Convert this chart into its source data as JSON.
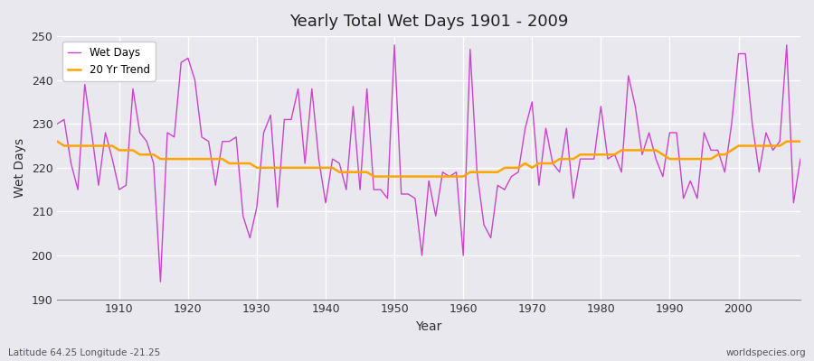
{
  "title": "Yearly Total Wet Days 1901 - 2009",
  "xlabel": "Year",
  "ylabel": "Wet Days",
  "lat_lon_label": "Latitude 64.25 Longitude -21.25",
  "watermark": "worldspecies.org",
  "ylim": [
    190,
    250
  ],
  "xlim": [
    1901,
    2009
  ],
  "yticks": [
    190,
    200,
    210,
    220,
    230,
    240,
    250
  ],
  "xticks": [
    1910,
    1920,
    1930,
    1940,
    1950,
    1960,
    1970,
    1980,
    1990,
    2000
  ],
  "wet_days_color": "#CC44CC",
  "trend_color": "#FFA500",
  "bg_color": "#E8E8EE",
  "grid_color": "#FFFFFF",
  "years": [
    1901,
    1902,
    1903,
    1904,
    1905,
    1906,
    1907,
    1908,
    1909,
    1910,
    1911,
    1912,
    1913,
    1914,
    1915,
    1916,
    1917,
    1918,
    1919,
    1920,
    1921,
    1922,
    1923,
    1924,
    1925,
    1926,
    1927,
    1928,
    1929,
    1930,
    1931,
    1932,
    1933,
    1934,
    1935,
    1936,
    1937,
    1938,
    1939,
    1940,
    1941,
    1942,
    1943,
    1944,
    1945,
    1946,
    1947,
    1948,
    1949,
    1950,
    1951,
    1952,
    1953,
    1954,
    1955,
    1956,
    1957,
    1958,
    1959,
    1960,
    1961,
    1962,
    1963,
    1964,
    1965,
    1966,
    1967,
    1968,
    1969,
    1970,
    1971,
    1972,
    1973,
    1974,
    1975,
    1976,
    1977,
    1978,
    1979,
    1980,
    1981,
    1982,
    1983,
    1984,
    1985,
    1986,
    1987,
    1988,
    1989,
    1990,
    1991,
    1992,
    1993,
    1994,
    1995,
    1996,
    1997,
    1998,
    1999,
    2000,
    2001,
    2002,
    2003,
    2004,
    2005,
    2006,
    2007,
    2008,
    2009
  ],
  "wet_days": [
    230,
    231,
    221,
    215,
    239,
    228,
    216,
    228,
    222,
    215,
    216,
    238,
    228,
    226,
    221,
    194,
    228,
    227,
    244,
    245,
    240,
    227,
    226,
    216,
    226,
    226,
    227,
    209,
    204,
    211,
    228,
    232,
    211,
    231,
    231,
    238,
    221,
    238,
    222,
    212,
    222,
    221,
    215,
    234,
    215,
    238,
    215,
    215,
    213,
    248,
    214,
    214,
    213,
    200,
    217,
    209,
    219,
    218,
    219,
    200,
    247,
    219,
    207,
    204,
    216,
    215,
    218,
    219,
    229,
    235,
    216,
    229,
    221,
    219,
    229,
    213,
    222,
    222,
    222,
    234,
    222,
    223,
    219,
    241,
    234,
    223,
    228,
    222,
    218,
    228,
    228,
    213,
    217,
    213,
    228,
    224,
    224,
    219,
    230,
    246,
    246,
    230,
    219,
    228,
    224,
    226,
    248,
    212,
    222
  ],
  "trend": [
    226,
    225,
    225,
    225,
    225,
    225,
    225,
    225,
    225,
    224,
    224,
    224,
    223,
    223,
    223,
    222,
    222,
    222,
    222,
    222,
    222,
    222,
    222,
    222,
    222,
    221,
    221,
    221,
    221,
    220,
    220,
    220,
    220,
    220,
    220,
    220,
    220,
    220,
    220,
    220,
    220,
    219,
    219,
    219,
    219,
    219,
    218,
    218,
    218,
    218,
    218,
    218,
    218,
    218,
    218,
    218,
    218,
    218,
    218,
    218,
    219,
    219,
    219,
    219,
    219,
    220,
    220,
    220,
    221,
    220,
    221,
    221,
    221,
    222,
    222,
    222,
    223,
    223,
    223,
    223,
    223,
    223,
    224,
    224,
    224,
    224,
    224,
    224,
    223,
    222,
    222,
    222,
    222,
    222,
    222,
    222,
    223,
    223,
    224,
    225,
    225,
    225,
    225,
    225,
    225,
    225,
    226,
    226,
    226
  ]
}
